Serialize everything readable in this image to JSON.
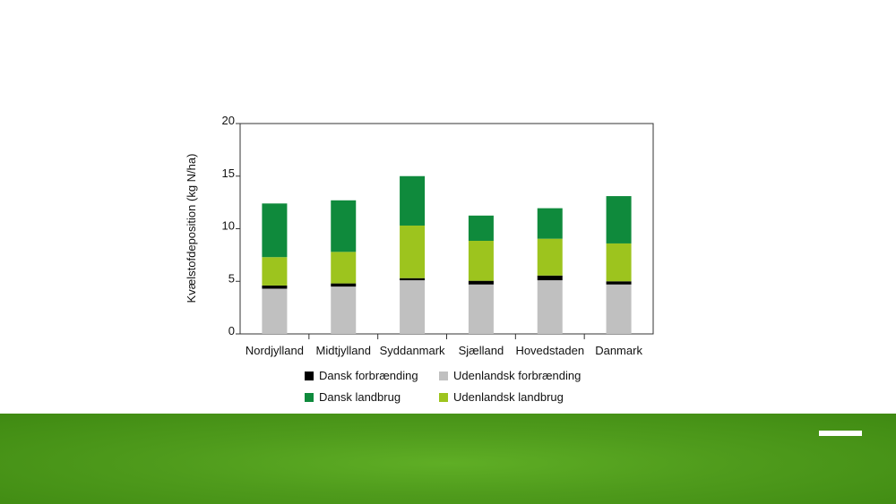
{
  "chart_data": {
    "type": "bar",
    "stacked": true,
    "categories": [
      "Nordjylland",
      "Midtjylland",
      "Syddanmark",
      "Sjælland",
      "Hovedstaden",
      "Danmark"
    ],
    "series": [
      {
        "name": "Udenlandsk forbrænding",
        "color": "#c0c0c0",
        "values": [
          4.3,
          4.5,
          5.1,
          4.7,
          5.1,
          4.7
        ]
      },
      {
        "name": "Dansk forbrænding",
        "color": "#000000",
        "values": [
          0.3,
          0.3,
          0.2,
          0.35,
          0.45,
          0.3
        ]
      },
      {
        "name": "Udenlandsk landbrug",
        "color": "#9dc41e",
        "values": [
          2.7,
          3.0,
          5.0,
          3.8,
          3.5,
          3.6
        ]
      },
      {
        "name": "Dansk landbrug",
        "color": "#0f8a3c",
        "values": [
          5.1,
          4.9,
          4.7,
          2.4,
          2.9,
          4.5
        ]
      }
    ],
    "title": "",
    "xlabel": "",
    "ylabel": "Kvælstofdeposition (kg N/ha)",
    "ylim": [
      0,
      20
    ],
    "yticks": [
      0,
      5,
      10,
      15,
      20
    ],
    "grid": false,
    "legend_position": "bottom",
    "legend_order": [
      "Dansk forbrænding",
      "Udenlandsk forbrænding",
      "Dansk landbrug",
      "Udenlandsk landbrug"
    ]
  },
  "footer": {
    "band_color": "#4f9b1c"
  }
}
